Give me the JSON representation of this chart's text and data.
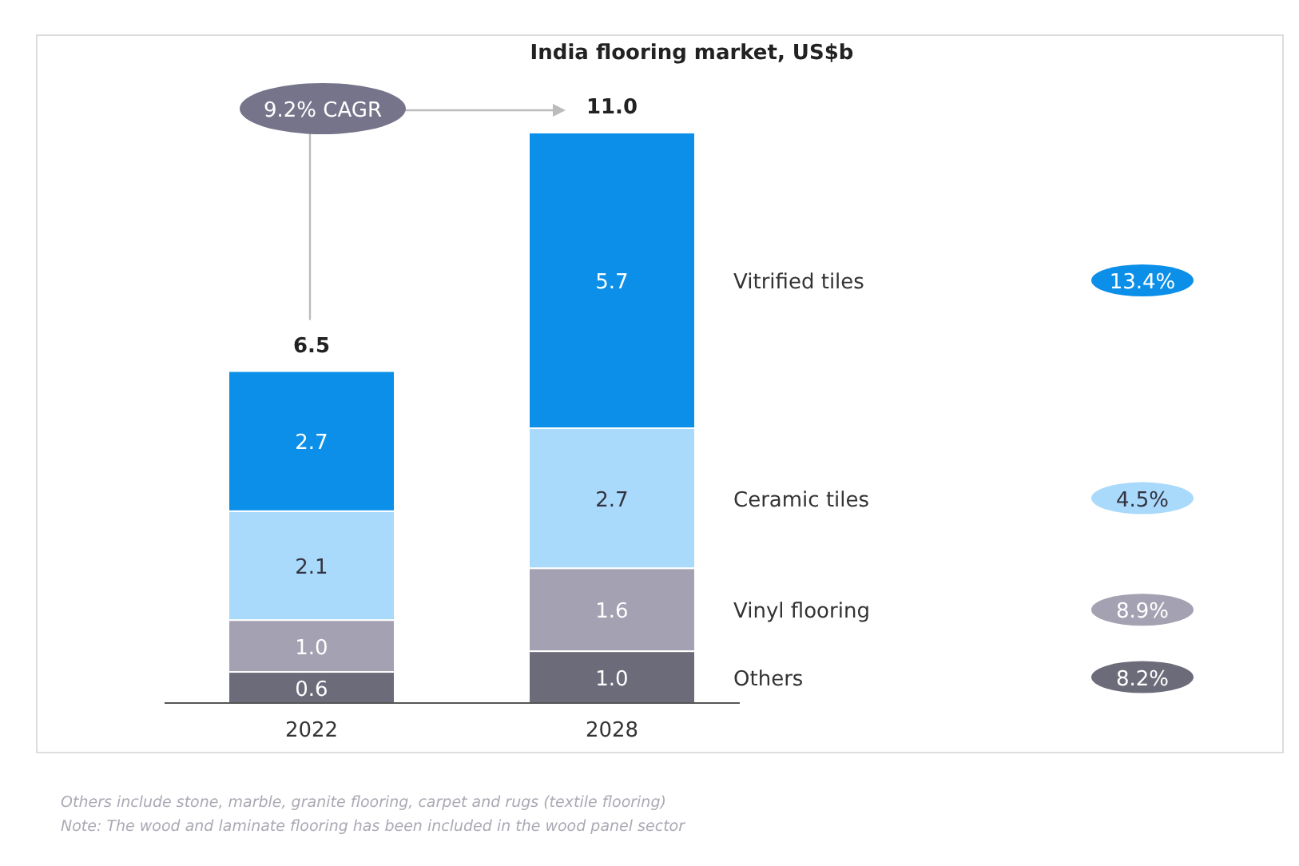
{
  "chart_data": {
    "type": "bar",
    "title": "India flooring market, US$b",
    "stacked": true,
    "categories": [
      "2022",
      "2028"
    ],
    "series": [
      {
        "name": "Others",
        "color": "#6c6b7a",
        "values": [
          0.6,
          1.0
        ],
        "value_labels": [
          "0.6",
          "1.0"
        ]
      },
      {
        "name": "Vinyl flooring",
        "color": "#a4a2b2",
        "values": [
          1.0,
          1.6
        ],
        "value_labels": [
          "1.0",
          "1.6"
        ]
      },
      {
        "name": "Ceramic tiles",
        "color": "#a9d9fb",
        "values": [
          2.1,
          2.7
        ],
        "value_labels": [
          "2.1",
          "2.7"
        ]
      },
      {
        "name": "Vitrified tiles",
        "color": "#0b8fe9",
        "values": [
          2.7,
          5.7
        ],
        "value_labels": [
          "2.7",
          "5.7"
        ]
      }
    ],
    "totals": [
      "6.5",
      "11.0"
    ],
    "annotations": [
      "9.2% CAGR",
      "8.2%",
      "8.9%",
      "4.5%",
      "13.4%",
      "Others include stone, marble, granite flooring, carpet and rugs (textile flooring)",
      "Note: The wood and laminate flooring has been included in the wood panel sector"
    ]
  }
}
